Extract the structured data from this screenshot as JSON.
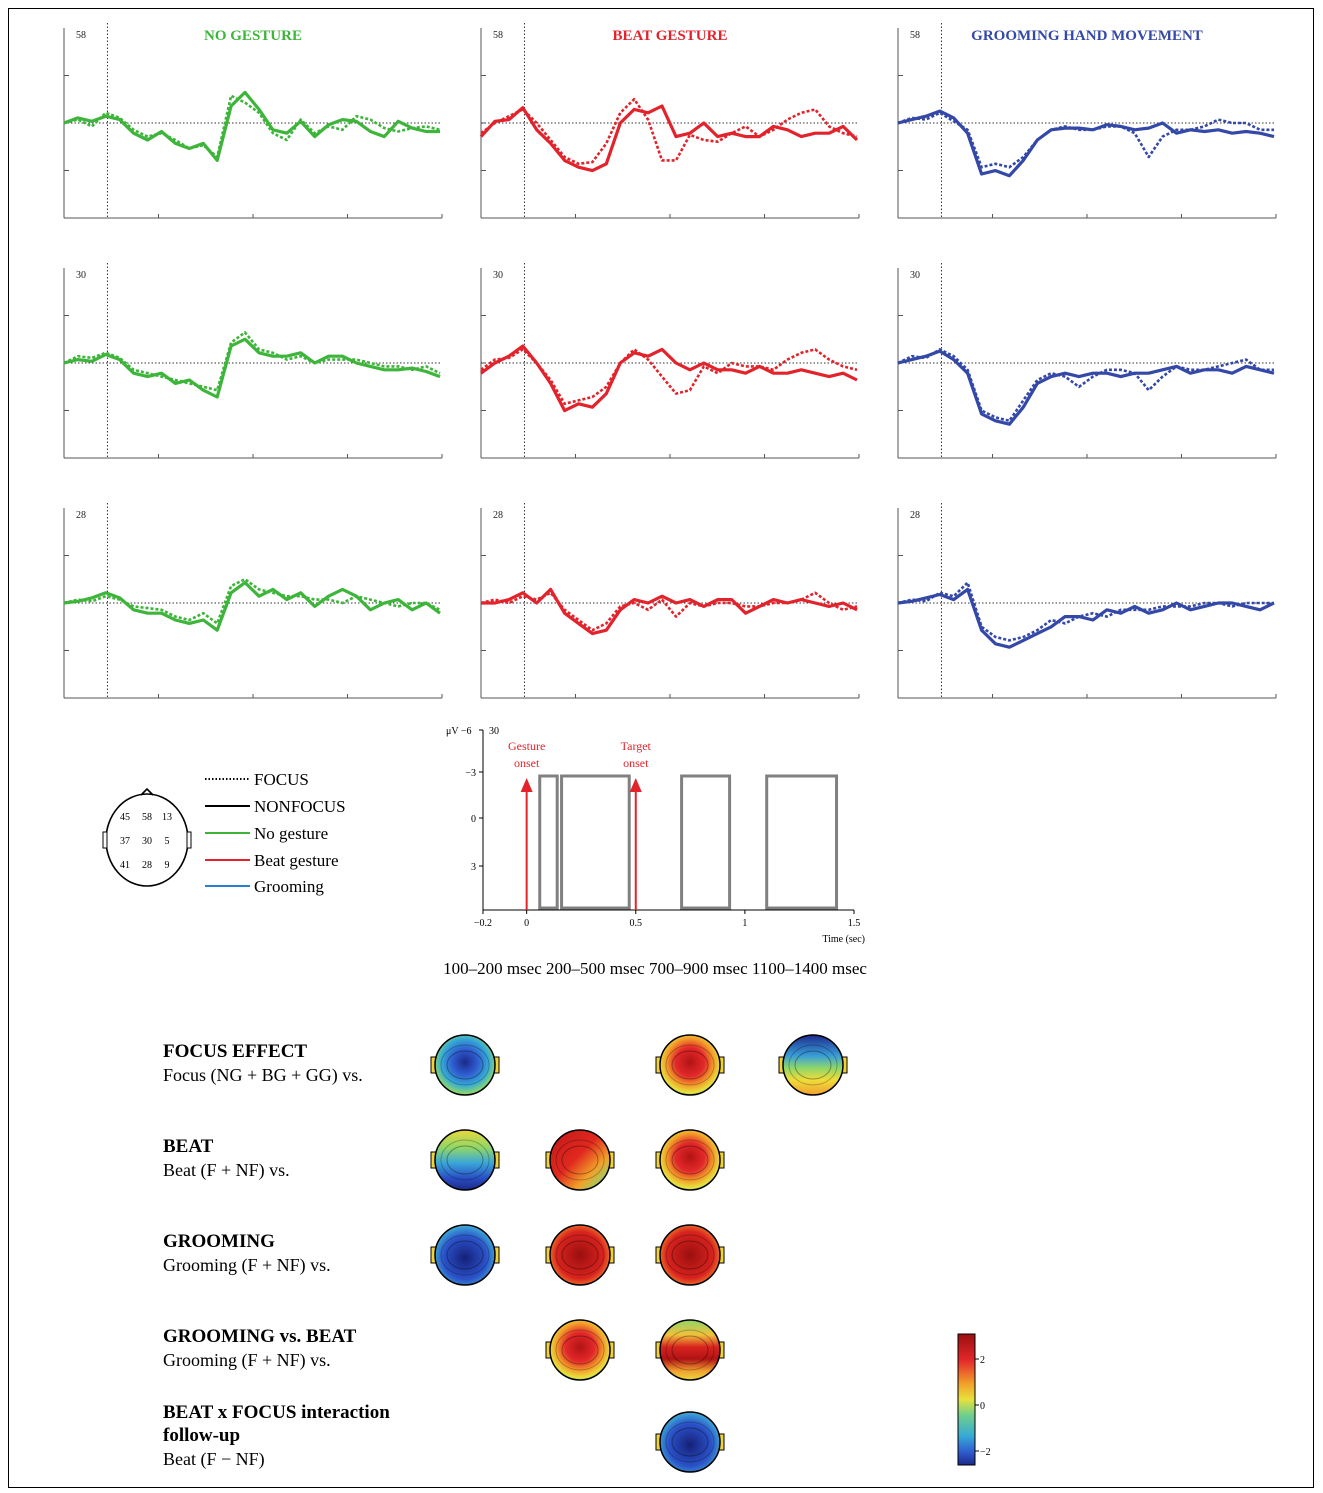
{
  "chart_data": {
    "type": "line",
    "columns": [
      {
        "title": "NO GESTURE",
        "color": "#3db53a"
      },
      {
        "title": "BEAT GESTURE",
        "color": "#e3232c"
      },
      {
        "title": "GROOMING HAND MOVEMENT",
        "color": "#3448a8"
      }
    ],
    "rows": [
      {
        "electrode": "58",
        "panels": [
          {
            "focus": [
              0,
              0.2,
              -0.2,
              0.6,
              0.3,
              -0.4,
              -0.8,
              -0.6,
              -1.0,
              -1.5,
              -1.3,
              -2.0,
              1.6,
              1.2,
              0.6,
              -0.6,
              -1.0,
              0.2,
              -0.6,
              -0.2,
              -0.4,
              0.4,
              0.2,
              -0.3,
              -0.5,
              -0.3,
              -0.2,
              -0.4
            ],
            "nonfocus": [
              0,
              0.3,
              0.1,
              0.4,
              0.2,
              -0.6,
              -1.0,
              -0.5,
              -1.2,
              -1.5,
              -1.2,
              -2.2,
              1.0,
              1.8,
              0.8,
              -0.4,
              -0.6,
              0.1,
              -0.8,
              -0.1,
              0.2,
              0.1,
              -0.5,
              -0.8,
              0.1,
              -0.3,
              -0.5,
              -0.5
            ]
          },
          {
            "focus": [
              -0.6,
              0,
              0.4,
              0.8,
              0.0,
              -1.0,
              -2.0,
              -2.4,
              -2.3,
              -1.2,
              0.6,
              1.4,
              0.2,
              -2.2,
              -2.2,
              -0.7,
              -1.0,
              -1.1,
              -0.6,
              -0.2,
              -0.8,
              -0.4,
              0.2,
              0.6,
              0.8,
              -0.2,
              -0.6,
              -0.8
            ],
            "nonfocus": [
              -0.8,
              0.1,
              0.2,
              0.9,
              -0.4,
              -1.2,
              -2.2,
              -2.6,
              -2.8,
              -2.4,
              0.0,
              0.8,
              0.6,
              1.0,
              -0.8,
              -0.6,
              0.0,
              -0.8,
              -0.6,
              -0.8,
              -0.8,
              -0.2,
              -0.4,
              -0.8,
              -0.6,
              -0.6,
              -0.2,
              -1.0
            ]
          },
          {
            "focus": [
              0,
              0.3,
              0.2,
              0.6,
              0.1,
              -0.4,
              -2.6,
              -2.4,
              -2.6,
              -2.0,
              -1.0,
              -0.4,
              -0.2,
              -0.4,
              -0.4,
              -0.2,
              -0.2,
              -0.6,
              -2.0,
              -0.8,
              -0.4,
              -0.4,
              -0.2,
              0.2,
              0.0,
              0.0,
              -0.4,
              -0.4
            ],
            "nonfocus": [
              0,
              0.2,
              0.4,
              0.7,
              0.3,
              -0.6,
              -3.0,
              -2.8,
              -3.1,
              -2.2,
              -1.0,
              -0.4,
              -0.3,
              -0.3,
              -0.4,
              -0.1,
              -0.2,
              -0.4,
              -0.3,
              0.0,
              -0.6,
              -0.4,
              -0.5,
              -0.4,
              -0.6,
              -0.5,
              -0.6,
              -0.8
            ]
          }
        ]
      },
      {
        "electrode": "30",
        "panels": [
          {
            "focus": [
              0,
              0.4,
              0.3,
              0.6,
              0.3,
              -0.4,
              -0.6,
              -0.8,
              -1.0,
              -1.2,
              -1.4,
              -1.6,
              1.2,
              1.8,
              0.8,
              0.6,
              0.2,
              0.4,
              0.0,
              0.2,
              0.2,
              0.2,
              0.0,
              -0.2,
              -0.2,
              -0.4,
              -0.2,
              -0.6
            ],
            "nonfocus": [
              0,
              0.2,
              0.1,
              0.5,
              0.2,
              -0.6,
              -0.8,
              -0.6,
              -1.2,
              -1.0,
              -1.6,
              -2.0,
              1.0,
              1.4,
              0.6,
              0.4,
              0.4,
              0.6,
              0.0,
              0.4,
              0.4,
              0.0,
              -0.2,
              -0.4,
              -0.4,
              -0.3,
              -0.5,
              -0.8
            ]
          },
          {
            "focus": [
              -0.4,
              0.2,
              0.3,
              0.8,
              0.0,
              -1.0,
              -2.4,
              -2.2,
              -2.0,
              -1.4,
              0.0,
              0.8,
              0.2,
              -0.8,
              -1.8,
              -1.6,
              -0.2,
              -0.6,
              0.0,
              -0.2,
              -0.2,
              -0.4,
              0.2,
              0.6,
              0.8,
              0.2,
              -0.2,
              -0.4
            ],
            "nonfocus": [
              -0.6,
              0.0,
              0.4,
              1.0,
              0.0,
              -1.2,
              -2.8,
              -2.4,
              -2.6,
              -1.8,
              0.0,
              0.6,
              0.4,
              0.8,
              0.0,
              -0.4,
              0.0,
              -0.4,
              -0.4,
              -0.6,
              -0.2,
              -0.6,
              -0.6,
              -0.4,
              -0.6,
              -0.8,
              -0.6,
              -1.0
            ]
          },
          {
            "focus": [
              0,
              0.4,
              0.3,
              0.8,
              0.4,
              -0.4,
              -2.8,
              -3.2,
              -3.4,
              -2.2,
              -1.0,
              -0.6,
              -0.8,
              -1.4,
              -0.8,
              -0.4,
              -0.4,
              -0.6,
              -1.6,
              -0.8,
              -0.2,
              -0.4,
              -0.4,
              -0.2,
              0.0,
              0.2,
              -0.4,
              -0.4
            ],
            "nonfocus": [
              0,
              0.2,
              0.4,
              0.7,
              0.2,
              -0.6,
              -3.0,
              -3.4,
              -3.6,
              -2.6,
              -1.2,
              -0.8,
              -0.6,
              -0.8,
              -0.6,
              -0.6,
              -0.8,
              -0.6,
              -0.6,
              -0.4,
              -0.2,
              -0.6,
              -0.4,
              -0.4,
              -0.6,
              -0.2,
              -0.4,
              -0.6
            ]
          }
        ]
      },
      {
        "electrode": "28",
        "panels": [
          {
            "focus": [
              0,
              0.2,
              0.1,
              0.4,
              0.2,
              -0.2,
              -0.3,
              -0.4,
              -0.8,
              -1.0,
              -0.6,
              -1.2,
              1.0,
              1.4,
              0.8,
              0.6,
              0.4,
              0.4,
              0.2,
              0.2,
              0.0,
              0.4,
              0.2,
              0.0,
              -0.2,
              0.0,
              0.0,
              -0.4
            ],
            "nonfocus": [
              0,
              0.1,
              0.3,
              0.6,
              0.3,
              -0.4,
              -0.6,
              -0.6,
              -1.0,
              -1.2,
              -1.0,
              -1.6,
              0.6,
              1.2,
              0.4,
              0.8,
              0.2,
              0.6,
              -0.2,
              0.4,
              0.8,
              0.4,
              -0.4,
              0.0,
              0.2,
              -0.4,
              0.0,
              -0.6
            ]
          },
          {
            "focus": [
              0,
              0.2,
              0.0,
              0.4,
              0.2,
              0.6,
              -0.4,
              -1.0,
              -1.6,
              -1.2,
              -0.2,
              0.0,
              -0.4,
              0.2,
              -0.8,
              0.0,
              -0.2,
              0.0,
              0.0,
              -0.2,
              -0.2,
              0.0,
              0.0,
              0.2,
              0.6,
              0.0,
              -0.4,
              -0.2
            ],
            "nonfocus": [
              0,
              0.0,
              0.2,
              0.6,
              0.0,
              0.8,
              -0.6,
              -1.2,
              -1.8,
              -1.6,
              -0.4,
              0.2,
              0.0,
              0.4,
              0.0,
              0.2,
              -0.2,
              0.2,
              0.2,
              -0.6,
              -0.2,
              0.2,
              0.0,
              0.2,
              0.0,
              -0.2,
              0.0,
              -0.4
            ]
          },
          {
            "focus": [
              0,
              0.2,
              0.1,
              0.6,
              0.4,
              1.2,
              -1.4,
              -2.0,
              -2.2,
              -2.0,
              -1.6,
              -1.0,
              -1.2,
              -0.8,
              -0.6,
              -0.8,
              -0.4,
              -0.4,
              -0.4,
              -0.2,
              -0.2,
              -0.2,
              0.0,
              0.0,
              -0.2,
              0.0,
              0.0,
              0.0
            ],
            "nonfocus": [
              0,
              0.1,
              0.3,
              0.5,
              0.2,
              0.8,
              -1.6,
              -2.4,
              -2.6,
              -2.2,
              -1.8,
              -1.4,
              -0.8,
              -0.8,
              -1.0,
              -0.4,
              -0.6,
              -0.2,
              -0.6,
              -0.4,
              0.0,
              -0.4,
              -0.2,
              0.0,
              0.0,
              -0.2,
              -0.4,
              0.0
            ]
          }
        ]
      }
    ],
    "legend": {
      "focus": "FOCUS",
      "nonfocus": "NONFOCUS",
      "no_gesture": "No gesture",
      "beat_gesture": "Beat gesture",
      "grooming": "Grooming"
    },
    "electrode_map": [
      [
        "45",
        "58",
        "13"
      ],
      [
        "37",
        "30",
        "5"
      ],
      [
        "41",
        "28",
        "9"
      ]
    ],
    "scale_inset": {
      "y_unit": "μV",
      "y_ticks": [
        "−6",
        "−3",
        "0",
        "3"
      ],
      "y_top_label": "30",
      "x_ticks": [
        "−0.2",
        "0",
        "0.5",
        "1",
        "1.5"
      ],
      "xlim": [
        -0.2,
        1.5
      ],
      "xlabel": "Time (sec)",
      "arrows": [
        {
          "label1": "Gesture",
          "label2": "onset",
          "x": 0
        },
        {
          "label1": "Target",
          "label2": "onset",
          "x": 0.5
        }
      ],
      "windows": [
        [
          0.06,
          0.14
        ],
        [
          0.16,
          0.47
        ],
        [
          0.71,
          0.93
        ],
        [
          1.1,
          1.42
        ]
      ]
    },
    "topo_windows": [
      "100–200 msec",
      "200–500 msec",
      "700–900 msec",
      "1100–1400 msec"
    ],
    "topo_rows": [
      {
        "title": "FOCUS EFFECT",
        "subtitle": "Focus (NG + BG + GG) vs.",
        "maps": [
          "blue-center",
          null,
          "red-center",
          "blue-front"
        ]
      },
      {
        "title": "BEAT",
        "subtitle": "Beat (F + NF) vs.",
        "maps": [
          "blue-back",
          "red-left",
          "red-center",
          null
        ]
      },
      {
        "title": "GROOMING",
        "subtitle": "Grooming (F + NF) vs.",
        "maps": [
          "blue-full",
          "red-full",
          "red-full",
          null
        ]
      },
      {
        "title": "GROOMING vs. BEAT",
        "subtitle": "Grooming (F + NF) vs.",
        "maps": [
          null,
          "red-center",
          "red-band",
          null
        ]
      },
      {
        "title": "BEAT x FOCUS interaction",
        "title2": "follow-up",
        "subtitle": "Beat (F − NF)",
        "maps": [
          null,
          null,
          "blue-full",
          null
        ]
      }
    ],
    "colorbar": {
      "ticks": [
        "2",
        "0",
        "−2"
      ],
      "range": [
        -3,
        3
      ]
    }
  }
}
